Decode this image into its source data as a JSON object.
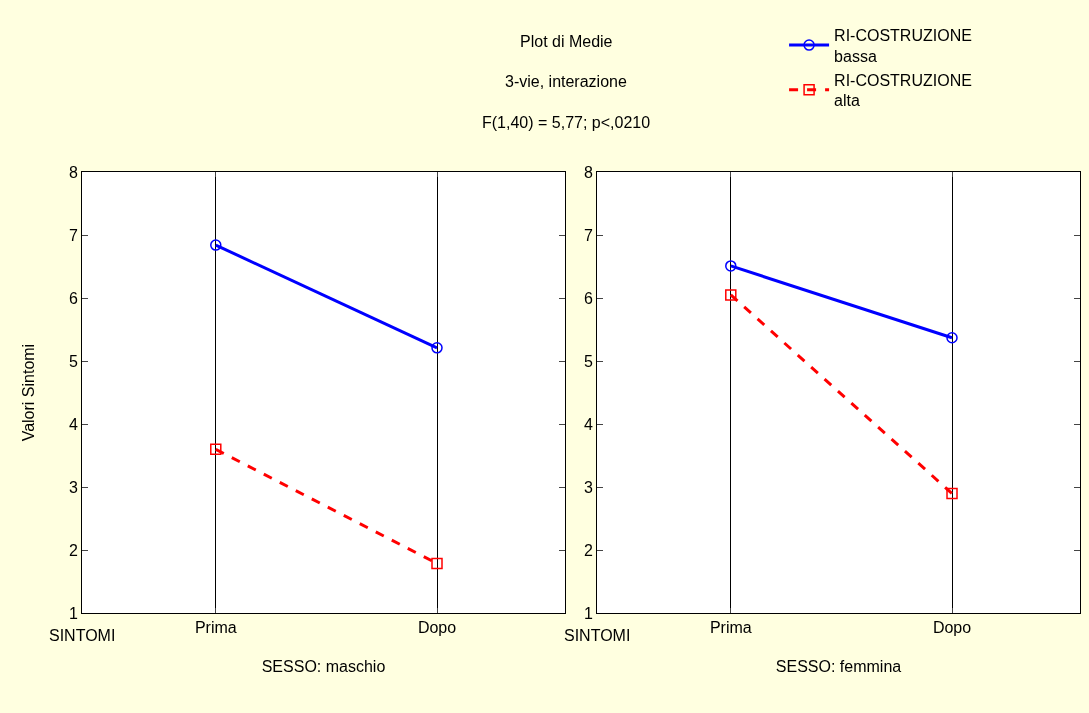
{
  "chart_data": [
    {
      "type": "line",
      "title": "Plot di Medie",
      "subtitle": "3-vie, interazione",
      "annotations": [
        "F(1,40) = 5,77; p<,0210",
        "SINTOMI"
      ],
      "xlabel": "SESSO: maschio",
      "ylabel": "Valori Sintomi",
      "categories": [
        "Prima",
        "Dopo"
      ],
      "series": [
        {
          "name": "RI-COSTRUZIONE bassa",
          "color": "#0000ff",
          "values": [
            6.84,
            5.21
          ],
          "marker": "circle",
          "line_style": "solid"
        },
        {
          "name": "RI-COSTRUZIONE alta",
          "color": "#ff0000",
          "values": [
            3.6,
            1.79
          ],
          "marker": "square",
          "line_style": "dashed"
        }
      ],
      "ylim": [
        1,
        8
      ],
      "yticks": [
        1,
        2,
        3,
        4,
        5,
        6,
        7,
        8
      ],
      "grid": "x",
      "legend": "top right"
    },
    {
      "type": "line",
      "annotations": [
        "SINTOMI"
      ],
      "xlabel": "SESSO: femmina",
      "categories": [
        "Prima",
        "Dopo"
      ],
      "series": [
        {
          "color": "#0000ff",
          "values": [
            6.51,
            5.37
          ],
          "marker": "circle",
          "line_style": "solid"
        },
        {
          "color": "#ff0000",
          "values": [
            6.05,
            2.9
          ],
          "marker": "square",
          "line_style": "dashed"
        }
      ],
      "ylim": [
        1,
        8
      ],
      "yticks": [
        1,
        2,
        3,
        4,
        5,
        6,
        7,
        8
      ],
      "grid": "x"
    }
  ]
}
